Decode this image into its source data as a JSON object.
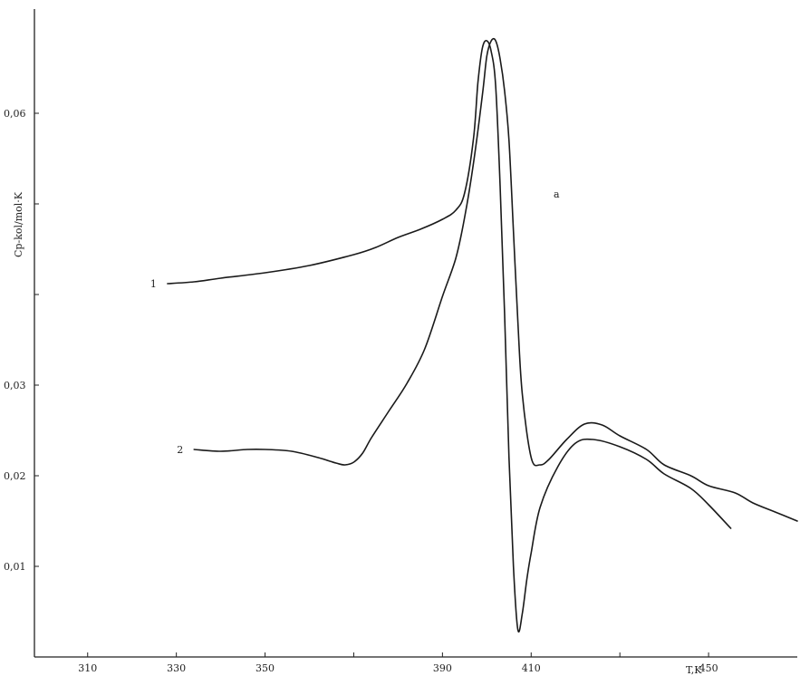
{
  "chart_data": {
    "type": "line",
    "title": "",
    "panel_label": "a",
    "xlabel": "T,K",
    "ylabel": "Cp-kol/mol·K",
    "xlim": [
      298,
      470
    ],
    "ylim": [
      0,
      0.0715
    ],
    "grid": false,
    "x_ticks": [
      310,
      330,
      350,
      390,
      410,
      450
    ],
    "x_tick_labels": [
      "310",
      "330",
      "350",
      "390",
      "410",
      "450"
    ],
    "x_minor_ticks": [
      370,
      430
    ],
    "y_ticks": [
      0.01,
      0.02,
      0.03,
      0.06
    ],
    "y_tick_labels": [
      "0,01",
      "0,02",
      "0,03",
      "0,06"
    ],
    "y_minor_ticks": [
      0.04,
      0.05
    ],
    "series": [
      {
        "name": "1",
        "x": [
          328,
          334,
          340,
          350,
          360,
          370,
          375,
          380,
          385,
          390,
          393,
          395,
          397,
          398,
          399,
          400,
          401,
          402,
          403,
          404,
          405,
          406,
          407,
          408,
          409,
          410,
          412,
          416,
          420,
          424,
          430,
          436,
          440,
          446,
          450,
          455
        ],
        "y": [
          0.0412,
          0.0414,
          0.0418,
          0.0424,
          0.0432,
          0.0444,
          0.0452,
          0.0463,
          0.0472,
          0.0483,
          0.0493,
          0.0512,
          0.0572,
          0.0634,
          0.0672,
          0.068,
          0.0668,
          0.063,
          0.052,
          0.038,
          0.022,
          0.01,
          0.003,
          0.0048,
          0.0085,
          0.0115,
          0.0165,
          0.021,
          0.0236,
          0.024,
          0.0232,
          0.0218,
          0.0202,
          0.0186,
          0.0168,
          0.0142
        ]
      },
      {
        "name": "2",
        "x": [
          334,
          340,
          346,
          350,
          356,
          362,
          366,
          368,
          370,
          372,
          374,
          378,
          382,
          386,
          390,
          393,
          395,
          397,
          399,
          400,
          401,
          402,
          403,
          404,
          405,
          406,
          407,
          408,
          410,
          412,
          414,
          418,
          422,
          426,
          430,
          436,
          440,
          446,
          450,
          456,
          460,
          465,
          470
        ],
        "y": [
          0.0229,
          0.0227,
          0.0229,
          0.0229,
          0.0227,
          0.022,
          0.0214,
          0.0212,
          0.0215,
          0.0225,
          0.0242,
          0.0272,
          0.0302,
          0.034,
          0.0398,
          0.044,
          0.0485,
          0.0545,
          0.062,
          0.0663,
          0.068,
          0.068,
          0.066,
          0.0625,
          0.057,
          0.047,
          0.037,
          0.029,
          0.022,
          0.0212,
          0.0218,
          0.024,
          0.0257,
          0.0256,
          0.0244,
          0.0229,
          0.0212,
          0.02,
          0.0189,
          0.0181,
          0.017,
          0.016,
          0.015
        ]
      }
    ]
  }
}
